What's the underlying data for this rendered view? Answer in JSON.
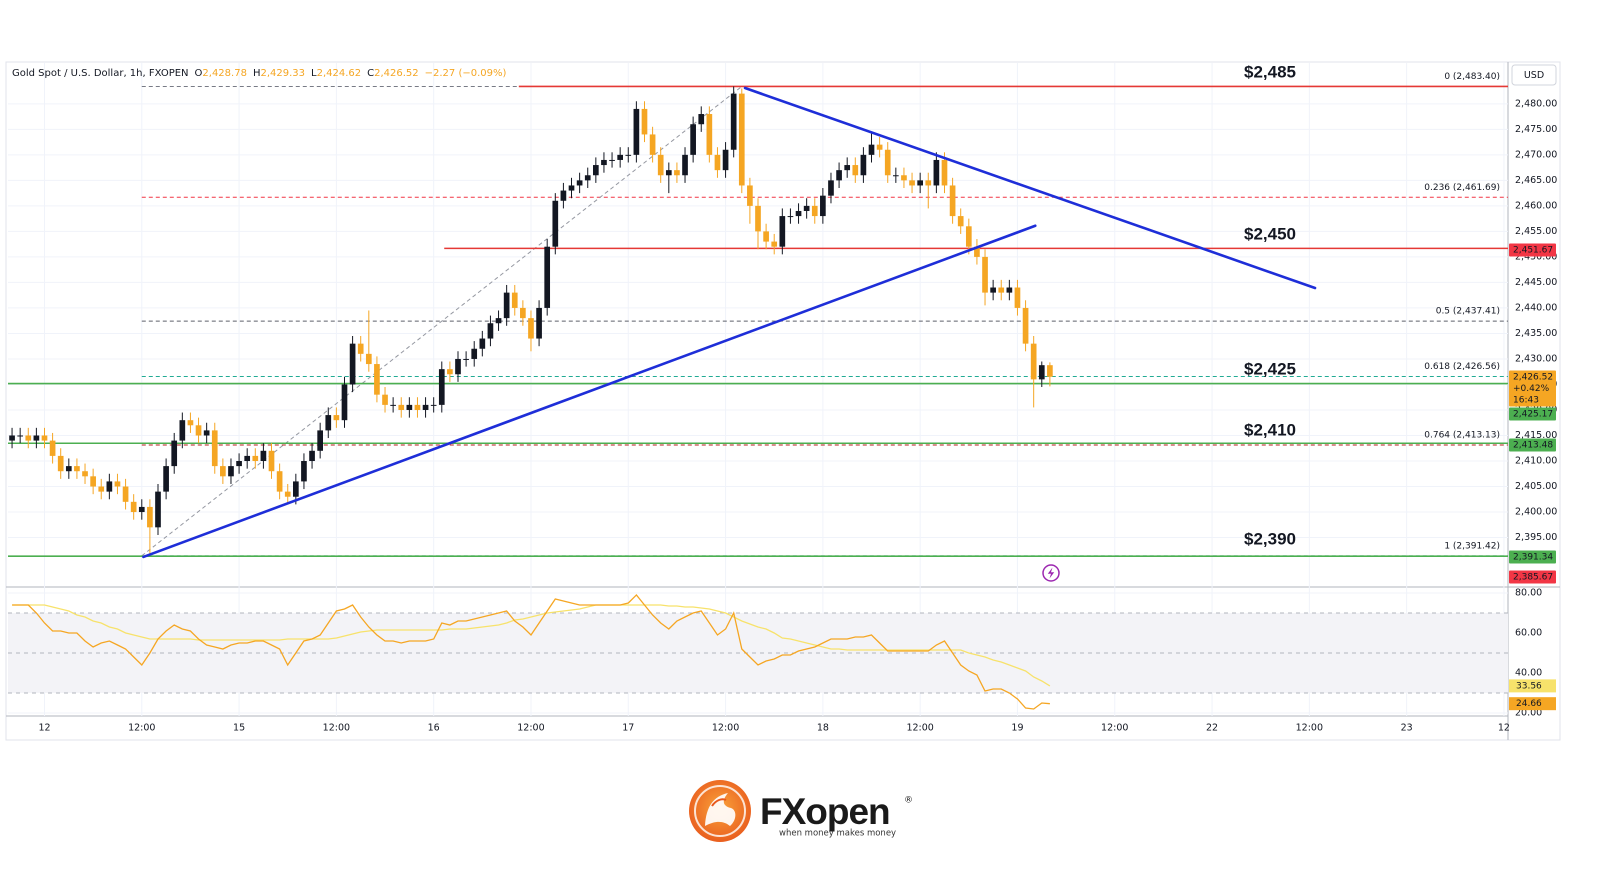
{
  "header": {
    "symbol": "Gold Spot / U.S. Dollar, 1h, FXOPEN",
    "ohlc": [
      {
        "key": "O",
        "value": "2,428.78"
      },
      {
        "key": "H",
        "value": "2,429.33"
      },
      {
        "key": "L",
        "value": "2,424.62"
      },
      {
        "key": "C",
        "value": "2,426.52"
      }
    ],
    "change": "−2.27 (−0.09%)"
  },
  "logo": {
    "name": "FXopen",
    "mark": "®",
    "tagline": "when money makes money"
  },
  "chart_data": [
    {
      "type": "candlestick",
      "currency": "USD",
      "xlim": [
        -0.5,
        184.5
      ],
      "xticks": [
        {
          "value": 4,
          "label": "12"
        },
        {
          "value": 16,
          "label": "12:00"
        },
        {
          "value": 28,
          "label": "15"
        },
        {
          "value": 40,
          "label": "12:00"
        },
        {
          "value": 52,
          "label": "16"
        },
        {
          "value": 64,
          "label": "12:00"
        },
        {
          "value": 76,
          "label": "17"
        },
        {
          "value": 88,
          "label": "12:00"
        },
        {
          "value": 100,
          "label": "18"
        },
        {
          "value": 112,
          "label": "12:00"
        },
        {
          "value": 124,
          "label": "19"
        },
        {
          "value": 136,
          "label": "12:00"
        },
        {
          "value": 148,
          "label": "22"
        },
        {
          "value": 160,
          "label": "12:00"
        },
        {
          "value": 172,
          "label": "23"
        },
        {
          "value": 184,
          "label": "12"
        }
      ],
      "ylim": [
        2385.7,
        2488.0
      ],
      "yticks": [
        {
          "value": 2395,
          "label": "2,395.00"
        },
        {
          "value": 2400,
          "label": "2,400.00"
        },
        {
          "value": 2405,
          "label": "2,405.00"
        },
        {
          "value": 2410,
          "label": "2,410.00"
        },
        {
          "value": 2415,
          "label": "2,415.00"
        },
        {
          "value": 2420,
          "label": "2,420.00"
        },
        {
          "value": 2425,
          "label": "2,425.00"
        },
        {
          "value": 2430,
          "label": "2,430.00"
        },
        {
          "value": 2435,
          "label": "2,435.00"
        },
        {
          "value": 2440,
          "label": "2,440.00"
        },
        {
          "value": 2445,
          "label": "2,445.00"
        },
        {
          "value": 2450,
          "label": "2,450.00"
        },
        {
          "value": 2455,
          "label": "2,455.00"
        },
        {
          "value": 2460,
          "label": "2,460.00"
        },
        {
          "value": 2465,
          "label": "2,465.00"
        },
        {
          "value": 2470,
          "label": "2,470.00"
        },
        {
          "value": 2475,
          "label": "2,475.00"
        },
        {
          "value": 2480,
          "label": "2,480.00"
        }
      ],
      "grid": true,
      "up_color": "#131722",
      "down_color": "#f5a623",
      "open": [
        2414,
        2415,
        2415,
        2414,
        2415,
        2414,
        2411,
        2408,
        2409,
        2408,
        2407,
        2405,
        2404,
        2406,
        2405,
        2402,
        2400,
        2401,
        2397,
        2404,
        2409,
        2414,
        2418,
        2417,
        2415,
        2416,
        2409,
        2407,
        2409,
        2410,
        2411,
        2410,
        2412,
        2408,
        2404,
        2403,
        2406,
        2410,
        2412,
        2416,
        2419,
        2418,
        2425,
        2433,
        2431,
        2429,
        2423,
        2421,
        2421,
        2420,
        2421,
        2420,
        2421,
        2421,
        2428,
        2427,
        2430,
        2430,
        2432,
        2434,
        2437,
        2438,
        2443,
        2440,
        2438,
        2434,
        2440,
        2452,
        2461,
        2463,
        2464,
        2465,
        2466,
        2468,
        2469,
        2469,
        2470,
        2470,
        2479,
        2474,
        2470,
        2466,
        2467,
        2466,
        2470,
        2476,
        2478,
        2470,
        2467,
        2471,
        2482,
        2464,
        2460,
        2455,
        2453,
        2452,
        2458,
        2458,
        2459,
        2460,
        2458,
        2462,
        2465,
        2467,
        2468,
        2466,
        2470,
        2472,
        2471,
        2466,
        2466,
        2465,
        2464,
        2465,
        2464,
        2469,
        2464,
        2458,
        2456,
        2452,
        2450,
        2443,
        2444,
        2443,
        2444,
        2440,
        2433,
        2426,
        2428.78
      ],
      "high": [
        2416.5,
        2416.5,
        2416.5,
        2416.5,
        2416.5,
        2415.5,
        2412.5,
        2410.5,
        2410.5,
        2409.5,
        2408.5,
        2406.5,
        2407.5,
        2407.5,
        2406.5,
        2403.5,
        2402.5,
        2402.5,
        2405.5,
        2410.5,
        2415.5,
        2419.5,
        2419.5,
        2418.5,
        2417.5,
        2417.5,
        2410.5,
        2410.5,
        2411.5,
        2412.5,
        2412.5,
        2413.5,
        2413.5,
        2409.5,
        2405.5,
        2407.5,
        2411.5,
        2413.5,
        2417.5,
        2420.5,
        2420.5,
        2426.5,
        2434.5,
        2434.5,
        2439.5,
        2430.5,
        2424.5,
        2422.5,
        2422.5,
        2422.5,
        2422.5,
        2422.5,
        2422.5,
        2429.5,
        2429.5,
        2431.5,
        2431.5,
        2433.5,
        2435.5,
        2438.5,
        2439.5,
        2444.5,
        2444.5,
        2441.5,
        2439.5,
        2441.5,
        2453.5,
        2462.5,
        2464.5,
        2465.5,
        2466.5,
        2467.5,
        2469.5,
        2470.5,
        2470.5,
        2471.5,
        2471.5,
        2480.5,
        2480.5,
        2475.5,
        2471.5,
        2468.5,
        2468.5,
        2471.5,
        2477.5,
        2479.5,
        2479.5,
        2471.5,
        2472.5,
        2483.4,
        2483,
        2465.5,
        2461.5,
        2456.5,
        2454.5,
        2459.5,
        2459.5,
        2460.5,
        2461.5,
        2461.5,
        2463.5,
        2466.5,
        2468.5,
        2469.5,
        2469.5,
        2471.5,
        2474.5,
        2473.5,
        2472.5,
        2467.5,
        2467.5,
        2466.5,
        2466.5,
        2466.5,
        2470.5,
        2470.5,
        2465.5,
        2459.5,
        2457.5,
        2453.5,
        2451.5,
        2445.5,
        2445.5,
        2445.5,
        2445.5,
        2441.5,
        2434.5,
        2429.5,
        2429.33
      ],
      "low": [
        2412.5,
        2413.5,
        2412.5,
        2412.5,
        2412.5,
        2409.5,
        2406.5,
        2406.5,
        2406.5,
        2405.5,
        2403.5,
        2402.5,
        2402.5,
        2403.5,
        2400.5,
        2398.5,
        2398.5,
        2391.42,
        2395.5,
        2402.5,
        2407.5,
        2412.5,
        2415.5,
        2413.5,
        2413.5,
        2407.5,
        2405.5,
        2405.5,
        2407.5,
        2408.5,
        2408.5,
        2408.5,
        2406.5,
        2402.5,
        2401.5,
        2401.5,
        2404.5,
        2408.5,
        2410.5,
        2414.5,
        2416.5,
        2416.5,
        2423.5,
        2429.5,
        2427.5,
        2421.5,
        2419.5,
        2419.5,
        2418.5,
        2418.5,
        2418.5,
        2418.5,
        2419.5,
        2419.5,
        2425.5,
        2425.5,
        2428.5,
        2428.5,
        2430.5,
        2432.5,
        2435.5,
        2436.5,
        2438.5,
        2436.5,
        2431.5,
        2432.5,
        2438.5,
        2450.5,
        2459.5,
        2461.5,
        2462.5,
        2463.5,
        2464.5,
        2466.5,
        2467.5,
        2467.5,
        2468.5,
        2468.5,
        2472.5,
        2468.5,
        2464.5,
        2462.5,
        2464.5,
        2464.5,
        2468.5,
        2474.5,
        2468.5,
        2465.5,
        2465.5,
        2469.5,
        2462.5,
        2456.5,
        2451.5,
        2451.5,
        2450.5,
        2450.5,
        2456.5,
        2456.5,
        2457.5,
        2456.5,
        2456.5,
        2460.5,
        2463.5,
        2465.5,
        2464.5,
        2464.5,
        2468.5,
        2469.5,
        2464.5,
        2464.5,
        2463.5,
        2462.5,
        2462.5,
        2459.5,
        2462.5,
        2462.5,
        2456.5,
        2454.5,
        2450.5,
        2448.5,
        2440.5,
        2441.5,
        2441.5,
        2441.5,
        2438.5,
        2431.5,
        2420.5,
        2424.5,
        2424.62
      ],
      "close": [
        2415,
        2415,
        2414,
        2415,
        2414,
        2411,
        2408,
        2409,
        2408,
        2407,
        2405,
        2404,
        2406,
        2405,
        2402,
        2400,
        2401,
        2397,
        2404,
        2409,
        2414,
        2418,
        2417,
        2415,
        2416,
        2409,
        2407,
        2409,
        2410,
        2411,
        2410,
        2412,
        2408,
        2404,
        2403,
        2406,
        2410,
        2412,
        2416,
        2419,
        2418,
        2425,
        2433,
        2431,
        2429,
        2423,
        2421,
        2421,
        2420,
        2421,
        2420,
        2421,
        2421,
        2428,
        2427,
        2430,
        2430,
        2432,
        2434,
        2437,
        2438,
        2443,
        2440,
        2438,
        2434,
        2440,
        2452,
        2461,
        2463,
        2464,
        2465,
        2466,
        2468,
        2469,
        2469,
        2470,
        2470,
        2479,
        2474,
        2470,
        2466,
        2467,
        2466,
        2470,
        2476,
        2478,
        2470,
        2467,
        2471,
        2482,
        2464,
        2460,
        2455,
        2453,
        2452,
        2458,
        2458,
        2459,
        2460,
        2458,
        2462,
        2465,
        2467,
        2468,
        2466,
        2470,
        2472,
        2471,
        2466,
        2466,
        2465,
        2464,
        2465,
        2464,
        2469,
        2464,
        2458,
        2456,
        2452,
        2450,
        2443,
        2444,
        2443,
        2444,
        2440,
        2433,
        2426,
        2428.78,
        2426.52
      ],
      "levels": [
        {
          "value": 2483.4,
          "from": 62.5,
          "color": "#e53935"
        },
        {
          "value": 2451.67,
          "from": 53.3,
          "color": "#e53935"
        },
        {
          "value": 2425.17,
          "from": -0.5,
          "color": "#4caf50"
        },
        {
          "value": 2413.48,
          "from": -0.5,
          "color": "#4caf50"
        },
        {
          "value": 2391.34,
          "from": -0.5,
          "color": "#4caf50"
        }
      ],
      "trendlines": [
        {
          "points": [
            [
              16.2,
              2391.2
            ],
            [
              126.2,
              2456.1
            ]
          ],
          "color": "#1e2ed8"
        },
        {
          "points": [
            [
              90.4,
              2483.1
            ],
            [
              160.7,
              2443.9
            ]
          ],
          "color": "#1e2ed8"
        }
      ],
      "fib": {
        "from": 16,
        "trend": [
          [
            16,
            2391.42
          ],
          [
            90,
            2483.4
          ]
        ],
        "trend_color": "#9598a1",
        "levels": [
          {
            "value": 2483.4,
            "label": "0 (2,483.40)",
            "color": "#787b86"
          },
          {
            "value": 2461.69,
            "label": "0.236 (2,461.69)",
            "color": "#f23645"
          },
          {
            "value": 2437.41,
            "label": "0.5 (2,437.41)",
            "color": "#5d606b"
          },
          {
            "value": 2426.56,
            "label": "0.618 (2,426.56)",
            "color": "#22ab94"
          },
          {
            "value": 2413.13,
            "label": "0.764 (2,413.13)",
            "color": "#b71c1c"
          },
          {
            "value": 2391.42,
            "label": "1 (2,391.42)",
            "color": "#26a69a"
          }
        ]
      },
      "price_labels": [
        {
          "value": 2451.67,
          "label": "2,451.67",
          "color": "#f23645"
        },
        {
          "value": 2426.52,
          "label": "2,426.52",
          "extra": [
            "+0.42%",
            "16:43"
          ],
          "color": "#f5a623"
        },
        {
          "value": 2425.17,
          "label": "2,425.17",
          "color": "#4caf50"
        },
        {
          "value": 2413.48,
          "label": "2,413.48",
          "color": "#4caf50"
        },
        {
          "value": 2391.34,
          "label": "2,391.34",
          "color": "#4caf50"
        },
        {
          "value": 2385.67,
          "label": "2,385.67",
          "color": "#f23645"
        }
      ],
      "annotations": [
        {
          "label": "$2,485",
          "value": 2485
        },
        {
          "label": "$2,450",
          "value": 2450
        },
        {
          "label": "$2,425",
          "value": 2425
        },
        {
          "label": "$2,410",
          "value": 2410
        },
        {
          "label": "$2,390",
          "value": 2390
        }
      ],
      "annotation_color": "#f5a623"
    },
    {
      "type": "line",
      "ylim": [
        18.5,
        82.5
      ],
      "yticks": [
        {
          "value": 20,
          "label": "20.00"
        },
        {
          "value": 40,
          "label": "40.00"
        },
        {
          "value": 60,
          "label": "60.00"
        },
        {
          "value": 80,
          "label": "80.00"
        }
      ],
      "band": [
        30,
        70
      ],
      "mid": 50,
      "color": "#f5a623",
      "ma_color": "#f7e26b",
      "values": [
        74,
        74,
        74,
        70,
        65,
        61,
        61,
        60,
        60,
        56,
        53,
        55,
        56,
        54,
        52,
        48,
        44,
        50,
        57,
        61,
        64,
        62,
        61,
        57,
        54,
        53,
        52,
        54,
        55,
        55,
        56,
        56,
        54,
        52,
        44,
        50,
        56,
        57,
        59,
        65,
        71,
        72,
        74,
        68,
        63,
        59,
        56,
        56,
        55,
        56,
        56,
        56,
        57,
        65,
        64,
        66,
        66,
        67,
        68,
        69,
        70,
        71,
        66,
        63,
        59,
        65,
        71,
        77,
        76,
        75,
        74,
        74,
        74,
        74,
        74,
        74,
        75,
        79,
        74,
        69,
        65,
        62,
        66,
        68,
        70,
        71,
        65,
        59,
        62,
        70,
        52,
        48,
        44,
        46,
        47,
        49,
        49,
        51,
        52,
        53,
        55,
        57,
        57,
        57,
        58,
        58,
        59,
        55,
        51,
        51,
        51,
        51,
        51,
        51,
        54,
        56,
        50,
        44,
        41,
        39,
        31,
        32,
        32,
        30,
        27,
        22.5,
        22,
        25,
        24.66
      ],
      "ma": [
        74,
        74,
        74,
        74,
        74,
        73,
        72,
        71,
        69,
        68,
        66,
        65,
        63,
        62,
        60,
        59,
        58,
        57,
        57,
        57,
        57,
        57,
        57,
        56.5,
        56.5,
        56.5,
        56.5,
        56.5,
        56.5,
        56.5,
        56.5,
        56.5,
        56.5,
        56.5,
        57,
        57,
        57,
        57,
        57,
        57,
        57.5,
        58.5,
        59.5,
        60.5,
        61,
        61.5,
        61.5,
        61.5,
        61.5,
        61.5,
        61.5,
        61.5,
        61.5,
        61.5,
        62,
        62,
        62,
        62.5,
        63,
        63.5,
        64,
        65,
        66.5,
        67,
        68,
        69,
        70,
        70.5,
        71,
        71.5,
        72,
        73,
        74,
        74,
        74,
        74,
        74,
        74,
        74,
        74,
        74,
        73.5,
        73.5,
        73,
        73,
        72.5,
        72,
        71,
        70,
        68,
        66,
        64.5,
        63,
        62,
        60,
        57.5,
        57,
        56,
        55,
        54,
        53,
        52,
        52,
        51.5,
        51.5,
        51.5,
        51.5,
        51.5,
        51.5,
        51.5,
        51.5,
        51.5,
        51.5,
        51.5,
        51.5,
        51.5,
        51.5,
        51.5,
        50,
        49,
        48,
        46.5,
        45.5,
        44,
        42.5,
        41,
        38,
        36,
        33.56
      ],
      "value_labels": [
        {
          "value": 33.56,
          "label": "33.56",
          "color": "#f7e26b"
        },
        {
          "value": 24.66,
          "label": "24.66",
          "color": "#f5a623"
        }
      ]
    }
  ]
}
